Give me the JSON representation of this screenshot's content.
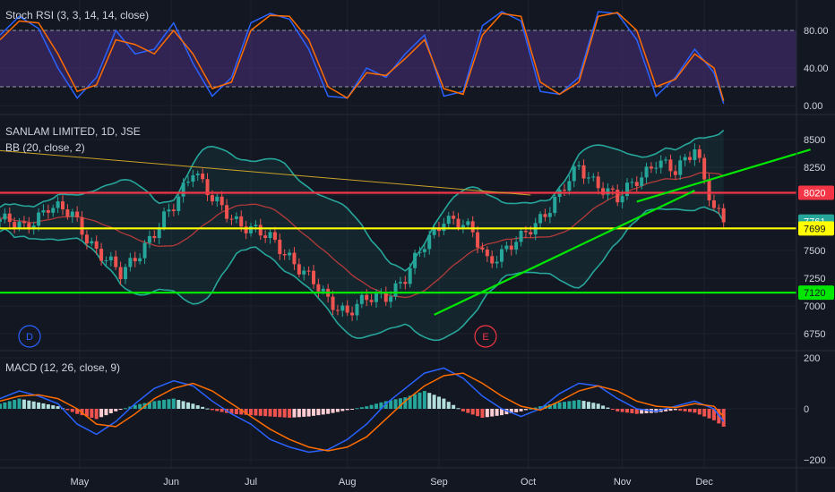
{
  "panels": {
    "stoch": {
      "title": "Stoch RSI (3, 3, 14, 14, close)",
      "ticks": [
        "80.00",
        "40.00",
        "0.00"
      ],
      "tick_values": [
        80,
        40,
        0
      ],
      "band": [
        20,
        80
      ],
      "colors": {
        "k": "#2962ff",
        "d": "#ff6d00",
        "band": "#4a2f7a"
      }
    },
    "price": {
      "title": "SANLAM LIMITED, 1D, JSE",
      "subtitle": "BB (20, close, 2)",
      "ticks": [
        "8500",
        "8250",
        "8000",
        "7750",
        "7500",
        "7250",
        "7000",
        "6750"
      ],
      "tick_values": [
        8500,
        8250,
        8000,
        7750,
        7500,
        7250,
        7000,
        6750
      ],
      "price_labels": [
        {
          "text": "8020",
          "value": 8020,
          "bg": "#f23645",
          "fg": "#ffffff"
        },
        {
          "text": "7761",
          "value": 7761,
          "bg": "#26a69a",
          "fg": "#ffffff"
        },
        {
          "text": "7699",
          "value": 7699,
          "bg": "#ffff00",
          "fg": "#131722"
        },
        {
          "text": "7120",
          "value": 7120,
          "bg": "#00e600",
          "fg": "#131722"
        }
      ],
      "markers": [
        {
          "text": "D",
          "color": "#2962ff"
        },
        {
          "text": "E",
          "color": "#f23645"
        }
      ]
    },
    "macd": {
      "title": "MACD (12, 26, close, 9)",
      "ticks": [
        "200",
        "0",
        "−200"
      ],
      "tick_values": [
        200,
        0,
        -200
      ]
    }
  },
  "x_axis": {
    "months": [
      "May",
      "Jun",
      "Jul",
      "Aug",
      "Sep",
      "Oct",
      "Nov",
      "Dec"
    ]
  },
  "chart_data": [
    {
      "type": "line",
      "title": "Stoch RSI (3, 3, 14, 14, close)",
      "ylim": [
        0,
        100
      ],
      "x": [
        0,
        4,
        8,
        12,
        16,
        20,
        24,
        28,
        32,
        36,
        40,
        44,
        48,
        52,
        56,
        60,
        64,
        68,
        72,
        76,
        80,
        84,
        88,
        92,
        96,
        100,
        104,
        108,
        112,
        116,
        120,
        124,
        128,
        132,
        136,
        140,
        144,
        148,
        150
      ],
      "series": [
        {
          "name": "K",
          "color": "#2962ff",
          "values": [
            75,
            95,
            82,
            40,
            8,
            30,
            80,
            55,
            60,
            88,
            45,
            10,
            30,
            88,
            98,
            92,
            60,
            10,
            8,
            40,
            30,
            55,
            75,
            10,
            15,
            85,
            100,
            90,
            15,
            12,
            30,
            100,
            98,
            70,
            10,
            30,
            60,
            35,
            2
          ]
        },
        {
          "name": "D",
          "color": "#ff6d00",
          "values": [
            70,
            90,
            88,
            55,
            15,
            22,
            70,
            65,
            55,
            80,
            55,
            18,
            25,
            80,
            96,
            95,
            70,
            20,
            8,
            35,
            32,
            50,
            70,
            18,
            12,
            75,
            98,
            95,
            25,
            12,
            25,
            95,
            99,
            80,
            20,
            28,
            55,
            40,
            5
          ]
        }
      ]
    },
    {
      "type": "candlestick",
      "title": "SANLAM LIMITED, 1D, JSE",
      "ylim": [
        6650,
        8620
      ],
      "x_points": [
        0,
        5,
        10,
        15,
        20,
        25,
        28,
        32,
        36,
        40,
        44,
        48,
        52,
        56,
        60,
        64,
        68,
        72,
        76,
        80,
        84,
        88,
        92,
        95,
        98,
        101,
        104,
        108,
        112,
        116,
        120,
        124,
        128,
        132,
        136,
        140,
        144,
        148,
        150
      ],
      "close": [
        7780,
        7700,
        7900,
        7820,
        7500,
        7280,
        7450,
        7650,
        7900,
        8250,
        7950,
        7800,
        7700,
        7600,
        7450,
        7250,
        7050,
        6950,
        7050,
        7100,
        7250,
        7550,
        7800,
        7750,
        7650,
        7420,
        7480,
        7600,
        7800,
        8000,
        8250,
        8100,
        7950,
        8150,
        8300,
        8200,
        8450,
        7850,
        7760
      ],
      "horizontal_lines": [
        {
          "value": 8020,
          "color": "#f23645"
        },
        {
          "value": 7699,
          "color": "#ffff00"
        },
        {
          "value": 7120,
          "color": "#00e600"
        }
      ],
      "trendlines": [
        {
          "from": [
            0,
            8400
          ],
          "to": [
            110,
            8000
          ],
          "color": "#c9a227"
        },
        {
          "from": [
            90,
            6920
          ],
          "to": [
            144,
            8040
          ],
          "color": "#00e600"
        },
        {
          "from": [
            132,
            7940
          ],
          "to": [
            168,
            8410
          ],
          "color": "#00e600"
        }
      ]
    },
    {
      "type": "bar",
      "title": "MACD (12, 26, close, 9)",
      "ylim": [
        -220,
        210
      ],
      "x": [
        0,
        4,
        8,
        12,
        16,
        20,
        24,
        28,
        32,
        36,
        40,
        44,
        48,
        52,
        56,
        60,
        64,
        68,
        72,
        76,
        80,
        84,
        88,
        92,
        96,
        100,
        104,
        108,
        112,
        116,
        120,
        124,
        128,
        132,
        136,
        140,
        144,
        148,
        150
      ],
      "histogram": [
        20,
        40,
        25,
        10,
        -20,
        -40,
        -10,
        15,
        30,
        40,
        20,
        -5,
        -20,
        -25,
        -30,
        -35,
        -30,
        -20,
        -5,
        10,
        30,
        45,
        70,
        40,
        -10,
        -35,
        -25,
        -10,
        10,
        25,
        35,
        20,
        -10,
        -20,
        -15,
        -5,
        -15,
        -45,
        -70
      ],
      "series": [
        {
          "name": "MACD",
          "color": "#2962ff",
          "values": [
            40,
            70,
            50,
            20,
            -60,
            -100,
            -50,
            20,
            80,
            110,
            90,
            30,
            -20,
            -60,
            -120,
            -150,
            -170,
            -160,
            -120,
            -60,
            20,
            80,
            140,
            160,
            120,
            50,
            0,
            -30,
            0,
            60,
            100,
            90,
            40,
            0,
            -10,
            10,
            30,
            0,
            -50
          ]
        },
        {
          "name": "Signal",
          "color": "#ff6d00",
          "values": [
            30,
            50,
            55,
            40,
            0,
            -60,
            -70,
            -20,
            40,
            80,
            100,
            70,
            20,
            -30,
            -80,
            -120,
            -150,
            -165,
            -150,
            -110,
            -40,
            30,
            90,
            130,
            140,
            100,
            50,
            10,
            -5,
            30,
            70,
            90,
            70,
            30,
            10,
            5,
            20,
            10,
            -30
          ]
        }
      ]
    }
  ]
}
